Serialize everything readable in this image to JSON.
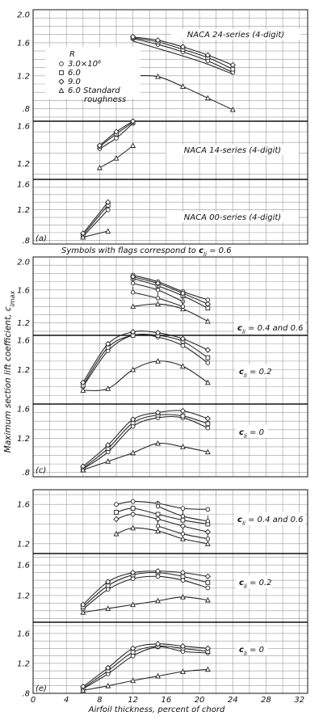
{
  "figure": {
    "x_axis_label": "Airfoil thickness, percent of chord",
    "y_axis_label": "Maximum section lift coefficient, c",
    "y_axis_label_sub": "lmax",
    "x_ticks": [
      0,
      4,
      8,
      12,
      16,
      20,
      24,
      28,
      32
    ],
    "x_range": [
      0,
      33
    ],
    "flag_note_prefix": "Symbols with flags correspond to ",
    "flag_note_cl": "c",
    "flag_note_sub": "li",
    "flag_note_value": " = 0.6",
    "legend": {
      "header": "R",
      "entries": [
        {
          "marker": "circle",
          "text": "3.0×10⁶"
        },
        {
          "marker": "square",
          "text": "6.0"
        },
        {
          "marker": "diamond",
          "text": "9.0"
        },
        {
          "marker": "triangle",
          "text": "6.0 Standard"
        }
      ],
      "continuation": "roughness"
    },
    "panel_letters": [
      "(a)",
      "(c)",
      "(e)"
    ],
    "colors": {
      "ink": "#111111",
      "grid": "#9a9a9a",
      "background": "#ffffff"
    }
  },
  "chart_data": [
    {
      "type": "line",
      "panel": "(a)",
      "title": "NACA 24-series (4-digit)",
      "y_ticks": [
        "2.0",
        "1.6",
        "1.2",
        ".8"
      ],
      "ylim": [
        0.65,
        2.0
      ],
      "x": [
        12,
        15,
        18,
        21,
        24
      ],
      "series": [
        {
          "marker": "circle",
          "values": [
            1.65,
            1.58,
            1.49,
            1.38,
            1.24
          ]
        },
        {
          "marker": "square",
          "values": [
            1.66,
            1.61,
            1.52,
            1.42,
            1.28
          ]
        },
        {
          "marker": "diamond",
          "values": [
            1.67,
            1.63,
            1.55,
            1.45,
            1.33
          ]
        },
        {
          "marker": "triangle",
          "values": [
            1.2,
            1.19,
            1.07,
            0.93,
            0.79
          ]
        }
      ],
      "extra_lines": [
        {
          "marker": "none",
          "x": [
            12,
            15,
            18,
            21,
            24
          ],
          "values": [
            1.62,
            1.53,
            1.44,
            1.34,
            1.22
          ]
        }
      ]
    },
    {
      "type": "line",
      "panel": "(a)",
      "title": "NACA 14-series (4-digit)",
      "y_ticks": [
        "1.6",
        "1.2"
      ],
      "ylim": [
        1.05,
        1.6
      ],
      "x": [
        8,
        10,
        12
      ],
      "series": [
        {
          "marker": "circle",
          "values": [
            1.34,
            1.44,
            1.58
          ]
        },
        {
          "marker": "square",
          "values": [
            1.36,
            1.48,
            1.59
          ]
        },
        {
          "marker": "diamond",
          "values": [
            1.37,
            1.5,
            1.6
          ]
        },
        {
          "marker": "triangle",
          "values": [
            1.16,
            1.25,
            1.37
          ]
        }
      ]
    },
    {
      "type": "line",
      "panel": "(a)",
      "title": "NACA 00-series (4-digit)",
      "y_ticks": [
        "1.6",
        "1.2",
        ".8"
      ],
      "ylim": [
        0.75,
        1.6
      ],
      "x": [
        6,
        9
      ],
      "series": [
        {
          "marker": "circle",
          "values": [
            0.85,
            1.2
          ]
        },
        {
          "marker": "square",
          "values": [
            0.87,
            1.26
          ]
        },
        {
          "marker": "diamond",
          "values": [
            0.89,
            1.3
          ]
        },
        {
          "marker": "triangle",
          "values": [
            0.84,
            0.92
          ]
        }
      ]
    },
    {
      "type": "line",
      "panel": "(c)",
      "title": "cli = 0.4 and 0.6",
      "label_cl": "c",
      "label_sub": "li",
      "label_value": " = 0.4 and 0.6",
      "y_ticks": [
        "2.0",
        "1.6",
        "1.2"
      ],
      "ylim": [
        1.05,
        2.0
      ],
      "x": [
        12,
        15,
        18,
        21
      ],
      "series": [
        {
          "marker": "circle",
          "values": [
            1.78,
            1.7,
            1.58,
            1.48
          ]
        },
        {
          "marker": "square",
          "values": [
            1.74,
            1.65,
            1.53,
            1.38
          ]
        },
        {
          "marker": "diamond",
          "values": [
            1.76,
            1.68,
            1.56,
            1.43
          ]
        },
        {
          "marker": "triangle",
          "values": [
            1.4,
            1.43,
            1.37,
            1.22
          ]
        }
      ],
      "extra_lines": [
        {
          "marker": "flag",
          "x": [
            12,
            15,
            18
          ],
          "values": [
            1.68,
            1.6,
            1.46
          ]
        },
        {
          "marker": "flag",
          "x": [
            12,
            15,
            18
          ],
          "values": [
            1.57,
            1.5,
            1.4
          ]
        }
      ]
    },
    {
      "type": "line",
      "panel": "(c)",
      "title": "cli = 0.2",
      "label_cl": "c",
      "label_sub": "li",
      "label_value": " = 0.2",
      "y_ticks": [
        "1.6",
        "1.2"
      ],
      "ylim": [
        0.8,
        1.6
      ],
      "x": [
        6,
        9,
        12,
        15,
        18,
        21
      ],
      "series": [
        {
          "marker": "circle",
          "values": [
            1.0,
            1.42,
            1.6,
            1.58,
            1.48,
            1.28
          ]
        },
        {
          "marker": "square",
          "values": [
            1.02,
            1.46,
            1.6,
            1.6,
            1.53,
            1.34
          ]
        },
        {
          "marker": "diamond",
          "values": [
            1.05,
            1.5,
            1.64,
            1.63,
            1.56,
            1.43
          ]
        },
        {
          "marker": "triangle",
          "values": [
            0.96,
            0.98,
            1.2,
            1.3,
            1.24,
            1.05
          ]
        }
      ]
    },
    {
      "type": "line",
      "panel": "(c)",
      "title": "cli = 0",
      "label_cl": "c",
      "label_sub": "li",
      "label_value": " = 0",
      "y_ticks": [
        "1.6",
        "1.2",
        ".8"
      ],
      "ylim": [
        0.75,
        1.6
      ],
      "x": [
        6,
        9,
        12,
        15,
        18,
        21
      ],
      "series": [
        {
          "marker": "circle",
          "values": [
            0.84,
            1.04,
            1.34,
            1.44,
            1.44,
            1.32
          ]
        },
        {
          "marker": "square",
          "values": [
            0.85,
            1.08,
            1.38,
            1.47,
            1.46,
            1.37
          ]
        },
        {
          "marker": "diamond",
          "values": [
            0.87,
            1.12,
            1.42,
            1.5,
            1.52,
            1.43
          ]
        },
        {
          "marker": "triangle",
          "values": [
            0.83,
            0.93,
            1.03,
            1.14,
            1.1,
            1.04
          ]
        }
      ]
    },
    {
      "type": "line",
      "panel": "(e)",
      "title": "cli = 0.4 and 0.6",
      "label_cl": "c",
      "label_sub": "li",
      "label_value": " = 0.4 and 0.6",
      "y_ticks": [
        "1.6",
        "1.2"
      ],
      "ylim": [
        1.1,
        1.75
      ],
      "x": [
        10,
        12,
        15,
        18,
        21
      ],
      "series": [
        {
          "marker": "circle",
          "values": [
            1.6,
            1.63,
            1.61,
            1.56,
            1.55
          ]
        },
        {
          "marker": "square",
          "values": [
            1.52,
            1.56,
            1.5,
            1.44,
            1.4
          ]
        },
        {
          "marker": "diamond",
          "values": [
            1.45,
            1.5,
            1.45,
            1.38,
            1.32
          ]
        },
        {
          "marker": "triangle",
          "values": [
            1.3,
            1.36,
            1.33,
            1.25,
            1.2
          ]
        }
      ],
      "extra_lines": [
        {
          "marker": "flag",
          "x": [
            15,
            18,
            21
          ],
          "values": [
            1.58,
            1.48,
            1.43
          ]
        },
        {
          "marker": "flag",
          "x": [
            15,
            18,
            21
          ],
          "values": [
            1.38,
            1.3,
            1.25
          ]
        }
      ]
    },
    {
      "type": "line",
      "panel": "(e)",
      "title": "cli = 0.2",
      "label_cl": "c",
      "label_sub": "li",
      "label_value": " = 0.2",
      "y_ticks": [
        "1.6",
        "1.2"
      ],
      "ylim": [
        0.85,
        1.75
      ],
      "x": [
        6,
        9,
        12,
        15,
        18,
        21
      ],
      "series": [
        {
          "marker": "circle",
          "values": [
            1.02,
            1.28,
            1.42,
            1.45,
            1.4,
            1.3
          ]
        },
        {
          "marker": "square",
          "values": [
            1.05,
            1.33,
            1.47,
            1.5,
            1.45,
            1.37
          ]
        },
        {
          "marker": "diamond",
          "values": [
            1.08,
            1.38,
            1.5,
            1.52,
            1.5,
            1.45
          ]
        },
        {
          "marker": "triangle",
          "values": [
            0.98,
            1.03,
            1.08,
            1.13,
            1.18,
            1.14
          ]
        }
      ]
    },
    {
      "type": "line",
      "panel": "(e)",
      "title": "cli = 0",
      "label_cl": "c",
      "label_sub": "li",
      "label_value": " = 0",
      "y_ticks": [
        "1.6",
        "1.2",
        ".8"
      ],
      "ylim": [
        0.8,
        1.75
      ],
      "x": [
        6,
        9,
        12,
        15,
        18,
        21
      ],
      "series": [
        {
          "marker": "circle",
          "values": [
            0.86,
            1.06,
            1.3,
            1.42,
            1.36,
            1.34
          ]
        },
        {
          "marker": "square",
          "values": [
            0.87,
            1.1,
            1.35,
            1.43,
            1.4,
            1.36
          ]
        },
        {
          "marker": "diamond",
          "values": [
            0.89,
            1.14,
            1.4,
            1.46,
            1.43,
            1.4
          ]
        },
        {
          "marker": "triangle",
          "values": [
            0.84,
            0.9,
            0.97,
            1.03,
            1.09,
            1.12
          ]
        }
      ]
    }
  ]
}
